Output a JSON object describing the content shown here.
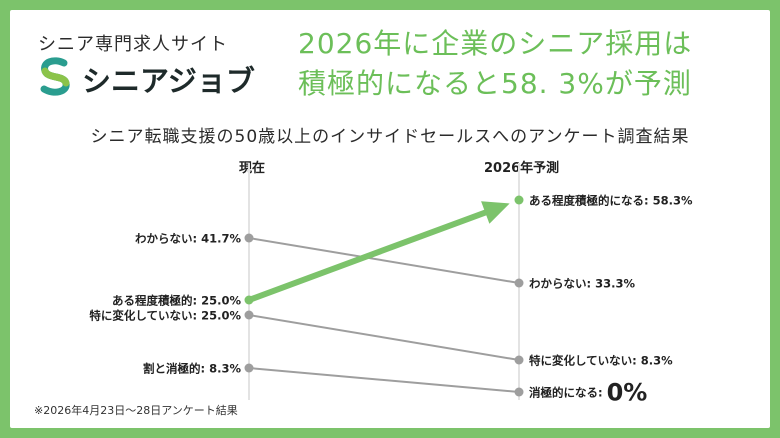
{
  "brand": {
    "subtitle": "シニア専門求人サイト",
    "name": "シニアジョブ",
    "colors": {
      "teal": "#2a9d8f",
      "green": "#8bc34a"
    }
  },
  "headline": {
    "line1": "2026年に企業のシニア採用は",
    "line2": "積極的になると58. 3%が予測"
  },
  "subtitle": "シニア転職支援の50歳以上のインサイドセールスへのアンケート調査結果",
  "columns": {
    "left": "現在",
    "right": "2026年予測"
  },
  "footnote": "※2026年4月23日～28日アンケート結果",
  "colors": {
    "highlight": "#7cc36b",
    "gray": "#9e9e9e",
    "axis": "#e3e3e3"
  },
  "chart_data": {
    "type": "slope",
    "x": [
      "現在",
      "2026年予測"
    ],
    "series": [
      {
        "start": {
          "label": "わからない",
          "value": 41.7
        },
        "end": {
          "label": "わからない",
          "value": 33.3
        },
        "highlight": false
      },
      {
        "start": {
          "label": "ある程度積極的",
          "value": 25.0
        },
        "end": {
          "label": "ある程度積極的になる",
          "value": 58.3
        },
        "highlight": true
      },
      {
        "start": {
          "label": "特に変化していない",
          "value": 25.0
        },
        "end": {
          "label": "特に変化していない",
          "value": 8.3
        },
        "highlight": false
      },
      {
        "start": {
          "label": "割と消極的",
          "value": 8.3
        },
        "end": {
          "label": "消極的になる",
          "value": 0
        },
        "highlight": false
      }
    ]
  }
}
